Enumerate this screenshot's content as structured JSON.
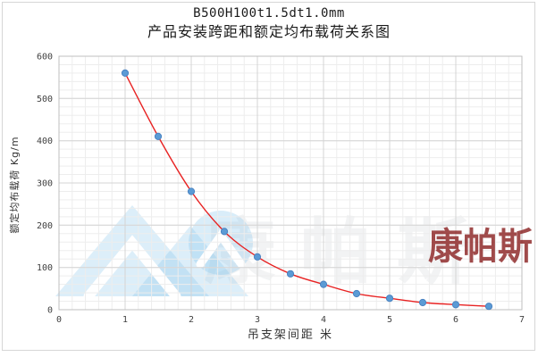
{
  "page": {
    "title_line1": "B500H100t1.5dt1.0mm",
    "title_line2": "产品安装跨距和额定均布载荷关系图"
  },
  "chart_data": {
    "type": "scatter",
    "title": "B500H100t1.5dt1.0mm 产品安装跨距和额定均布载荷关系图",
    "xlabel": "吊支架间距  米",
    "ylabel": "额定均布载荷 Kg/m",
    "x": [
      1.0,
      1.5,
      2.0,
      2.5,
      3.0,
      3.5,
      4.0,
      4.5,
      5.0,
      5.5,
      6.0,
      6.5
    ],
    "values": [
      560,
      410,
      280,
      185,
      125,
      85,
      60,
      38,
      27,
      17,
      12,
      8
    ],
    "series_name": "额定均布载荷",
    "xlim": [
      0,
      7
    ],
    "ylim": [
      0,
      600
    ],
    "x_major_step": 1,
    "x_minor_step": 0.2,
    "y_major_step": 100,
    "y_minor_step": 20,
    "grid": "on",
    "trendline": "smooth exponential fit through points",
    "point_color": "#5b9bd5",
    "point_edge_color": "#4a83c2",
    "line_color": "#e82222",
    "major_grid_color": "#d4d4d4",
    "minor_grid_color": "#ededed",
    "border_color": "#bfbfbf",
    "tick_label_color": "#3f3f3f"
  },
  "watermark": {
    "logo_icon": "mountain-peaks-logo",
    "logo_color": "#cfe7f5",
    "faint_text": "康帕斯",
    "stamp_text": "康帕斯",
    "stamp_color": "#8c2424"
  }
}
